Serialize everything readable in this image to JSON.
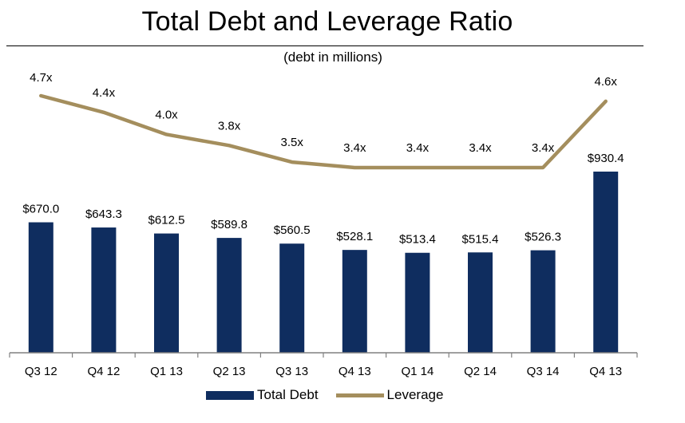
{
  "colors": {
    "bar": "#0f2d5f",
    "line": "#a48e5d",
    "axis": "#808080"
  },
  "chart_data": {
    "type": "bar+line",
    "title": "Total Debt and Leverage Ratio",
    "subtitle": "(debt in millions)",
    "categories": [
      "Q3 12",
      "Q4 12",
      "Q1 13",
      "Q2 13",
      "Q3 13",
      "Q4 13",
      "Q1 14",
      "Q2 14",
      "Q3 14",
      "Q4 13"
    ],
    "series": [
      {
        "name": "Total Debt",
        "type": "bar",
        "values": [
          670.0,
          643.3,
          612.5,
          589.8,
          560.5,
          528.1,
          513.4,
          515.4,
          526.3,
          930.4
        ],
        "labels": [
          "$670.0",
          "$643.3",
          "$612.5",
          "$589.8",
          "$560.5",
          "$528.1",
          "$513.4",
          "$515.4",
          "$526.3",
          "$930.4"
        ]
      },
      {
        "name": "Leverage",
        "type": "line",
        "values": [
          4.7,
          4.4,
          4.0,
          3.8,
          3.5,
          3.4,
          3.4,
          3.4,
          3.4,
          4.6
        ],
        "labels": [
          "4.7x",
          "4.4x",
          "4.0x",
          "3.8x",
          "3.5x",
          "3.4x",
          "3.4x",
          "3.4x",
          "3.4x",
          "4.6x"
        ]
      }
    ],
    "ylim_bar": [
      0,
      930.4
    ],
    "ylim_line": [
      3.4,
      4.7
    ],
    "grid": false,
    "legend": "bottom"
  }
}
